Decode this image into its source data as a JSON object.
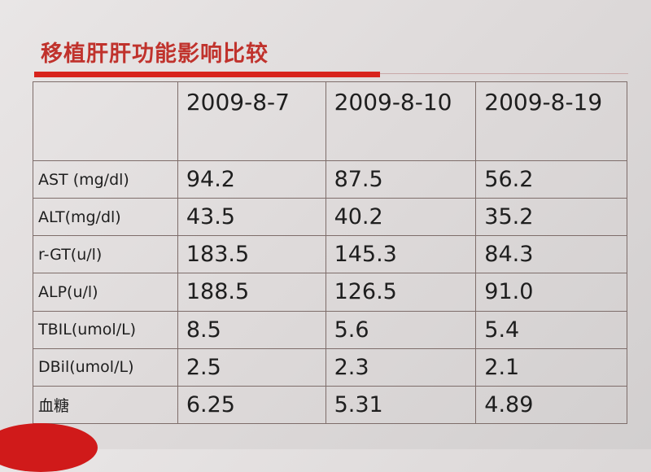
{
  "header": {
    "title": "移植肝肝功能影响比较"
  },
  "table": {
    "columns": [
      "2009-8-7",
      "2009-8-10",
      "2009-8-19"
    ],
    "rows": [
      [
        "AST (mg/dl)",
        "94.2",
        "87.5",
        "56.2"
      ],
      [
        "ALT(mg/dl)",
        "43.5",
        "40.2",
        "35.2"
      ],
      [
        "r-GT(u/l)",
        "183.5",
        "145.3",
        "84.3"
      ],
      [
        "ALP(u/l)",
        "188.5",
        "126.5",
        "91.0"
      ],
      [
        "TBIL(umol/L)",
        "8.5",
        "5.6",
        "5.4"
      ],
      [
        "DBil(umol/L)",
        "2.5",
        "2.3",
        "2.1"
      ],
      [
        "血糖",
        "6.25",
        "5.31",
        "4.89"
      ]
    ]
  }
}
